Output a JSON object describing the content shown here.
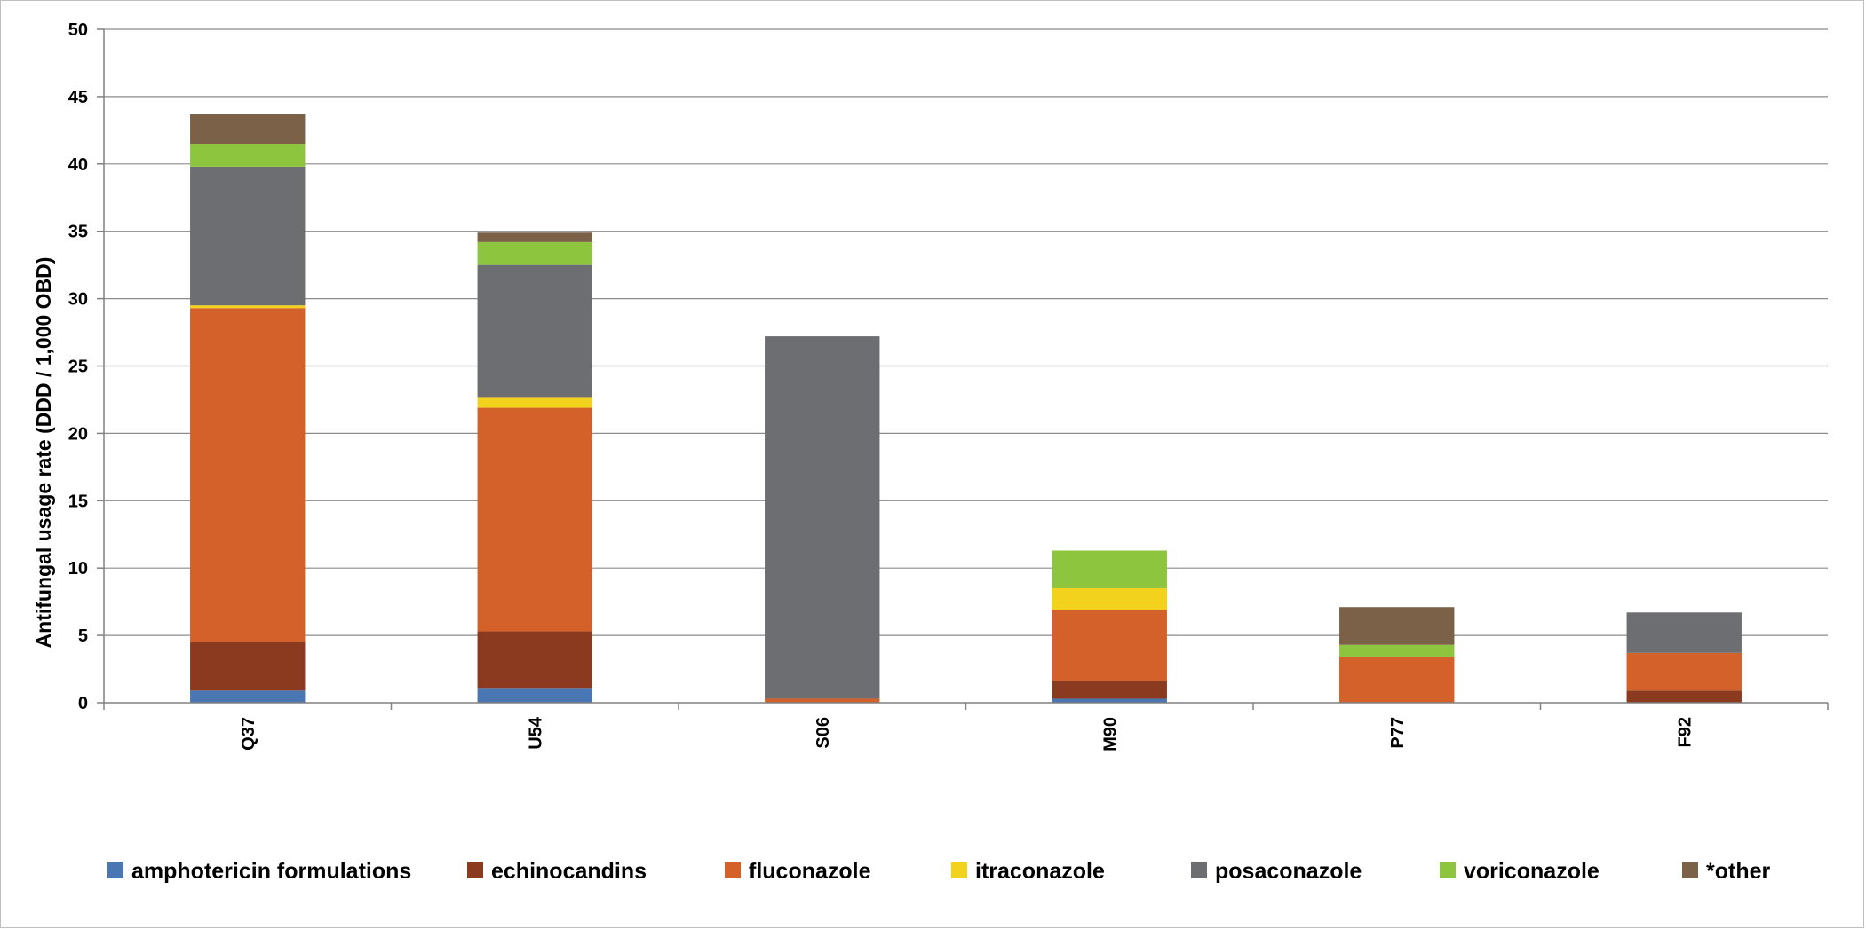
{
  "chart_data": {
    "type": "bar",
    "stacked": true,
    "title": "",
    "xlabel": "",
    "ylabel": "Antifungal usage rate (DDD / 1,000 OBD)",
    "ylim": [
      0,
      50
    ],
    "yticks": [
      0,
      5,
      10,
      15,
      20,
      25,
      30,
      35,
      40,
      45,
      50
    ],
    "ytick_labels": [
      "0",
      "5",
      "10",
      "15",
      "20",
      "25",
      "30",
      "35",
      "40",
      "45",
      "50"
    ],
    "grid": "horizontal",
    "legend_position": "bottom",
    "categories": [
      "Q37",
      "U54",
      "S06",
      "M90",
      "P77",
      "F92"
    ],
    "series": [
      {
        "name": "amphotericin formulations",
        "color": "#4A77B4",
        "values": [
          0.9,
          1.1,
          0,
          0.3,
          0,
          0
        ]
      },
      {
        "name": "echinocandins",
        "color": "#8B3A1F",
        "values": [
          3.6,
          4.2,
          0,
          1.3,
          0,
          0.9
        ]
      },
      {
        "name": "fluconazole",
        "color": "#D4602A",
        "values": [
          24.8,
          16.6,
          0.3,
          5.3,
          3.4,
          2.8
        ]
      },
      {
        "name": "itraconazole",
        "color": "#F2D21C",
        "values": [
          0.2,
          0.8,
          0,
          1.6,
          0,
          0
        ]
      },
      {
        "name": "posaconazole",
        "color": "#6D6E71",
        "values": [
          10.3,
          9.8,
          26.9,
          0,
          0,
          3.0
        ]
      },
      {
        "name": "voriconazole",
        "color": "#8DC53F",
        "values": [
          1.7,
          1.7,
          0,
          2.8,
          0.9,
          0
        ]
      },
      {
        "name": "*other",
        "color": "#7B6148",
        "values": [
          2.2,
          0.7,
          0,
          0,
          2.8,
          0
        ]
      }
    ]
  }
}
